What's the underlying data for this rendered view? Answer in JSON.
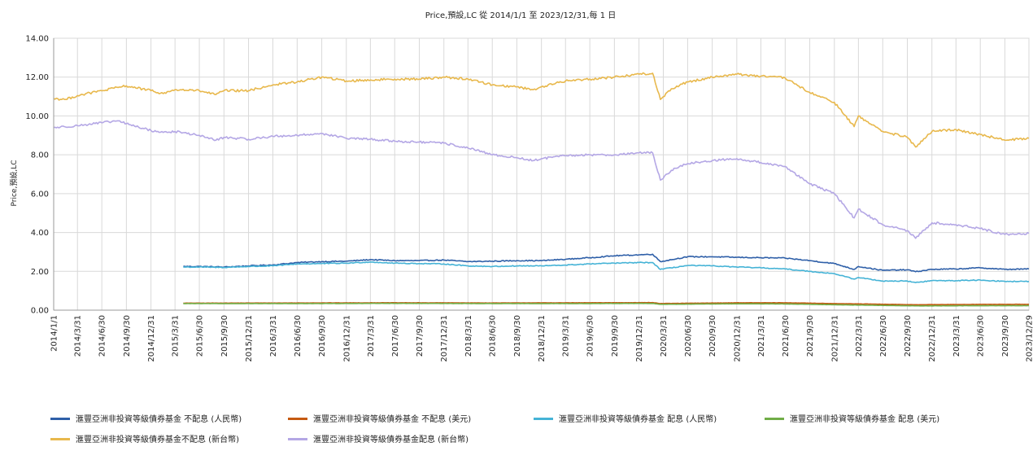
{
  "chart_data": {
    "type": "line",
    "title": "Price,預設,LC 從 2014/1/1 至 2023/12/31,每 1 日",
    "xlabel": "",
    "ylabel": "Price,預設,LC",
    "ylim": [
      0,
      14
    ],
    "yticks": [
      "0.00",
      "2.00",
      "4.00",
      "6.00",
      "8.00",
      "10.00",
      "12.00",
      "14.00"
    ],
    "xlim": [
      "2014-01-01",
      "2023-12-29"
    ],
    "xticks": [
      "2014/1/1",
      "2014/3/31",
      "2014/6/30",
      "2014/9/30",
      "2014/12/31",
      "2015/3/31",
      "2015/6/30",
      "2015/9/30",
      "2015/12/31",
      "2016/3/31",
      "2016/6/30",
      "2016/9/30",
      "2016/12/31",
      "2017/3/31",
      "2017/6/30",
      "2017/9/30",
      "2017/12/31",
      "2018/3/31",
      "2018/6/30",
      "2018/9/30",
      "2018/12/31",
      "2019/3/31",
      "2019/6/30",
      "2019/9/30",
      "2019/12/31",
      "2020/3/31",
      "2020/6/30",
      "2020/9/30",
      "2020/12/31",
      "2021/3/31",
      "2021/6/30",
      "2021/9/30",
      "2021/12/31",
      "2022/3/31",
      "2022/6/30",
      "2022/9/30",
      "2022/12/31",
      "2023/3/31",
      "2023/6/30",
      "2023/9/30",
      "2023/12/29"
    ],
    "grid": true,
    "legend_position": "bottom",
    "series": [
      {
        "name": "滙豐亞洲非投資等級債券基金 不配息 (人民幣)",
        "color": "#2e5fa8",
        "points": [
          [
            "2015-05-01",
            2.25
          ],
          [
            "2015-06-30",
            2.25
          ],
          [
            "2015-09-30",
            2.22
          ],
          [
            "2015-12-31",
            2.28
          ],
          [
            "2016-03-31",
            2.33
          ],
          [
            "2016-06-30",
            2.45
          ],
          [
            "2016-09-30",
            2.5
          ],
          [
            "2016-12-31",
            2.52
          ],
          [
            "2017-03-31",
            2.6
          ],
          [
            "2017-06-30",
            2.55
          ],
          [
            "2017-09-30",
            2.55
          ],
          [
            "2017-12-31",
            2.58
          ],
          [
            "2018-03-31",
            2.5
          ],
          [
            "2018-06-30",
            2.52
          ],
          [
            "2018-09-30",
            2.55
          ],
          [
            "2018-12-31",
            2.55
          ],
          [
            "2019-03-31",
            2.62
          ],
          [
            "2019-06-30",
            2.7
          ],
          [
            "2019-09-30",
            2.8
          ],
          [
            "2019-12-31",
            2.85
          ],
          [
            "2020-02-20",
            2.88
          ],
          [
            "2020-03-20",
            2.5
          ],
          [
            "2020-06-30",
            2.75
          ],
          [
            "2020-09-30",
            2.75
          ],
          [
            "2020-12-31",
            2.72
          ],
          [
            "2021-03-31",
            2.7
          ],
          [
            "2021-06-30",
            2.68
          ],
          [
            "2021-09-30",
            2.55
          ],
          [
            "2021-12-31",
            2.4
          ],
          [
            "2022-03-15",
            2.1
          ],
          [
            "2022-03-31",
            2.25
          ],
          [
            "2022-06-30",
            2.05
          ],
          [
            "2022-09-30",
            2.08
          ],
          [
            "2022-10-31",
            1.98
          ],
          [
            "2022-12-31",
            2.1
          ],
          [
            "2023-03-31",
            2.12
          ],
          [
            "2023-06-30",
            2.18
          ],
          [
            "2023-09-30",
            2.1
          ],
          [
            "2023-12-29",
            2.12
          ]
        ]
      },
      {
        "name": "滙豐亞洲非投資等級債券基金 不配息 (美元)",
        "color": "#c55a11",
        "points": [
          [
            "2015-05-01",
            0.36
          ],
          [
            "2016-06-30",
            0.37
          ],
          [
            "2017-06-30",
            0.38
          ],
          [
            "2018-06-30",
            0.37
          ],
          [
            "2019-06-30",
            0.38
          ],
          [
            "2020-02-20",
            0.39
          ],
          [
            "2020-03-20",
            0.34
          ],
          [
            "2020-12-31",
            0.38
          ],
          [
            "2021-06-30",
            0.38
          ],
          [
            "2021-12-31",
            0.34
          ],
          [
            "2022-10-31",
            0.28
          ],
          [
            "2023-06-30",
            0.3
          ],
          [
            "2023-12-29",
            0.3
          ]
        ]
      },
      {
        "name": "滙豐亞洲非投資等級債券基金 配息 (人民幣)",
        "color": "#45b3d6",
        "points": [
          [
            "2015-05-01",
            2.22
          ],
          [
            "2015-06-30",
            2.22
          ],
          [
            "2015-09-30",
            2.2
          ],
          [
            "2015-12-31",
            2.25
          ],
          [
            "2016-03-31",
            2.28
          ],
          [
            "2016-06-30",
            2.38
          ],
          [
            "2016-09-30",
            2.4
          ],
          [
            "2016-12-31",
            2.42
          ],
          [
            "2017-03-31",
            2.48
          ],
          [
            "2017-06-30",
            2.42
          ],
          [
            "2017-09-30",
            2.4
          ],
          [
            "2017-12-31",
            2.38
          ],
          [
            "2018-03-31",
            2.28
          ],
          [
            "2018-06-30",
            2.25
          ],
          [
            "2018-09-30",
            2.28
          ],
          [
            "2018-12-31",
            2.28
          ],
          [
            "2019-03-31",
            2.32
          ],
          [
            "2019-06-30",
            2.38
          ],
          [
            "2019-09-30",
            2.42
          ],
          [
            "2019-12-31",
            2.45
          ],
          [
            "2020-02-20",
            2.45
          ],
          [
            "2020-03-20",
            2.1
          ],
          [
            "2020-06-30",
            2.3
          ],
          [
            "2020-09-30",
            2.28
          ],
          [
            "2020-12-31",
            2.22
          ],
          [
            "2021-03-31",
            2.18
          ],
          [
            "2021-06-30",
            2.12
          ],
          [
            "2021-09-30",
            2.0
          ],
          [
            "2021-12-31",
            1.88
          ],
          [
            "2022-03-15",
            1.6
          ],
          [
            "2022-03-31",
            1.68
          ],
          [
            "2022-06-30",
            1.5
          ],
          [
            "2022-09-30",
            1.5
          ],
          [
            "2022-10-31",
            1.42
          ],
          [
            "2022-12-31",
            1.52
          ],
          [
            "2023-03-31",
            1.52
          ],
          [
            "2023-06-30",
            1.55
          ],
          [
            "2023-09-30",
            1.48
          ],
          [
            "2023-12-29",
            1.48
          ]
        ]
      },
      {
        "name": "滙豐亞洲非投資等級債券基金 配息 (美元)",
        "color": "#70ad47",
        "points": [
          [
            "2015-05-01",
            0.34
          ],
          [
            "2016-06-30",
            0.34
          ],
          [
            "2017-06-30",
            0.35
          ],
          [
            "2018-06-30",
            0.34
          ],
          [
            "2019-06-30",
            0.34
          ],
          [
            "2020-02-20",
            0.35
          ],
          [
            "2020-03-20",
            0.3
          ],
          [
            "2020-12-31",
            0.33
          ],
          [
            "2021-06-30",
            0.32
          ],
          [
            "2021-12-31",
            0.28
          ],
          [
            "2022-10-31",
            0.22
          ],
          [
            "2023-06-30",
            0.23
          ],
          [
            "2023-12-29",
            0.23
          ]
        ]
      },
      {
        "name": "滙豐亞洲非投資等級債券基金不配息 (新台幣)",
        "color": "#e8b84c",
        "points": [
          [
            "2014-01-01",
            10.9
          ],
          [
            "2014-02-15",
            10.85
          ],
          [
            "2014-03-31",
            11.05
          ],
          [
            "2014-06-30",
            11.3
          ],
          [
            "2014-09-30",
            11.55
          ],
          [
            "2014-12-31",
            11.3
          ],
          [
            "2015-02-15",
            11.15
          ],
          [
            "2015-03-31",
            11.35
          ],
          [
            "2015-06-30",
            11.3
          ],
          [
            "2015-08-31",
            11.1
          ],
          [
            "2015-09-30",
            11.3
          ],
          [
            "2015-12-31",
            11.3
          ],
          [
            "2016-03-31",
            11.6
          ],
          [
            "2016-06-30",
            11.75
          ],
          [
            "2016-09-30",
            12.0
          ],
          [
            "2016-12-31",
            11.8
          ],
          [
            "2017-03-31",
            11.85
          ],
          [
            "2017-06-30",
            11.9
          ],
          [
            "2017-09-30",
            11.9
          ],
          [
            "2017-12-31",
            12.0
          ],
          [
            "2018-03-31",
            11.9
          ],
          [
            "2018-06-30",
            11.6
          ],
          [
            "2018-09-30",
            11.5
          ],
          [
            "2018-11-30",
            11.35
          ],
          [
            "2018-12-31",
            11.5
          ],
          [
            "2019-03-31",
            11.8
          ],
          [
            "2019-06-30",
            11.9
          ],
          [
            "2019-09-30",
            12.0
          ],
          [
            "2019-12-31",
            12.15
          ],
          [
            "2020-02-20",
            12.2
          ],
          [
            "2020-03-20",
            10.85
          ],
          [
            "2020-04-30",
            11.4
          ],
          [
            "2020-06-30",
            11.75
          ],
          [
            "2020-09-30",
            12.0
          ],
          [
            "2020-12-31",
            12.15
          ],
          [
            "2021-03-31",
            12.05
          ],
          [
            "2021-06-30",
            11.95
          ],
          [
            "2021-09-30",
            11.2
          ],
          [
            "2021-12-31",
            10.7
          ],
          [
            "2022-03-15",
            9.45
          ],
          [
            "2022-03-31",
            10.0
          ],
          [
            "2022-06-30",
            9.2
          ],
          [
            "2022-09-30",
            8.9
          ],
          [
            "2022-10-31",
            8.4
          ],
          [
            "2022-12-31",
            9.2
          ],
          [
            "2023-03-31",
            9.3
          ],
          [
            "2023-06-30",
            9.05
          ],
          [
            "2023-09-30",
            8.75
          ],
          [
            "2023-12-29",
            8.85
          ]
        ]
      },
      {
        "name": "滙豐亞洲非投資等級債券基金配息 (新台幣)",
        "color": "#b4a7e5",
        "points": [
          [
            "2014-01-01",
            9.4
          ],
          [
            "2014-03-31",
            9.5
          ],
          [
            "2014-06-30",
            9.65
          ],
          [
            "2014-08-31",
            9.75
          ],
          [
            "2014-09-30",
            9.6
          ],
          [
            "2014-12-31",
            9.25
          ],
          [
            "2015-02-15",
            9.15
          ],
          [
            "2015-03-31",
            9.2
          ],
          [
            "2015-06-30",
            9.0
          ],
          [
            "2015-08-31",
            8.75
          ],
          [
            "2015-09-30",
            8.9
          ],
          [
            "2015-12-31",
            8.8
          ],
          [
            "2016-03-31",
            8.95
          ],
          [
            "2016-06-30",
            9.0
          ],
          [
            "2016-09-30",
            9.1
          ],
          [
            "2016-12-31",
            8.85
          ],
          [
            "2017-03-31",
            8.8
          ],
          [
            "2017-06-30",
            8.7
          ],
          [
            "2017-09-30",
            8.65
          ],
          [
            "2017-12-31",
            8.6
          ],
          [
            "2018-03-31",
            8.35
          ],
          [
            "2018-06-30",
            8.0
          ],
          [
            "2018-09-30",
            7.85
          ],
          [
            "2018-11-30",
            7.7
          ],
          [
            "2018-12-31",
            7.8
          ],
          [
            "2019-03-31",
            7.95
          ],
          [
            "2019-06-30",
            8.0
          ],
          [
            "2019-09-30",
            8.0
          ],
          [
            "2019-12-31",
            8.1
          ],
          [
            "2020-02-20",
            8.1
          ],
          [
            "2020-03-20",
            6.7
          ],
          [
            "2020-04-30",
            7.2
          ],
          [
            "2020-06-30",
            7.55
          ],
          [
            "2020-09-30",
            7.7
          ],
          [
            "2020-12-31",
            7.8
          ],
          [
            "2021-03-31",
            7.6
          ],
          [
            "2021-06-30",
            7.4
          ],
          [
            "2021-09-30",
            6.5
          ],
          [
            "2021-12-31",
            6.0
          ],
          [
            "2022-03-15",
            4.75
          ],
          [
            "2022-03-31",
            5.2
          ],
          [
            "2022-06-30",
            4.4
          ],
          [
            "2022-09-30",
            4.1
          ],
          [
            "2022-10-31",
            3.7
          ],
          [
            "2022-12-31",
            4.5
          ],
          [
            "2023-03-31",
            4.4
          ],
          [
            "2023-06-30",
            4.2
          ],
          [
            "2023-09-30",
            3.9
          ],
          [
            "2023-12-29",
            3.95
          ]
        ]
      }
    ]
  }
}
